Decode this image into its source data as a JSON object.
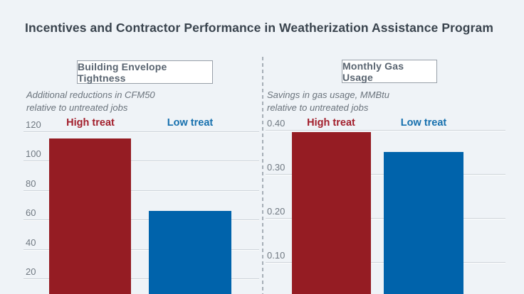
{
  "page": {
    "title": "Incentives and Contractor Performance in Weatherization Assistance Program"
  },
  "colors": {
    "background": "#eff3f7",
    "title_text": "#3a444e",
    "high_treat_bar": "#951c23",
    "low_treat_bar": "#0063ab",
    "high_treat_label": "#a21e2b",
    "low_treat_label": "#1670ae",
    "axis_text": "#6f7881",
    "subtitle_text": "#6a737c",
    "grid_line": "#cdd3d9",
    "divider": "#99a2ab",
    "box_border": "#979fa8",
    "box_text": "#596470",
    "box_bg": "#ffffff"
  },
  "chart_data": [
    {
      "type": "bar",
      "title": "Building Envelope Tightness",
      "subtitle_lines": [
        "Additional reductions in CFM50",
        "relative to untreated jobs"
      ],
      "categories": [
        "High treat",
        "Low treat"
      ],
      "values": [
        115,
        66
      ],
      "series_colors": [
        "#951c23",
        "#0063ab"
      ],
      "label_colors": [
        "#a21e2b",
        "#1670ae"
      ],
      "yticks": [
        {
          "value": 120,
          "label": "120"
        },
        {
          "value": 100,
          "label": "100"
        },
        {
          "value": 80,
          "label": "80"
        },
        {
          "value": 60,
          "label": "60"
        },
        {
          "value": 40,
          "label": "40"
        },
        {
          "value": 20,
          "label": "20"
        }
      ],
      "ylim": [
        0,
        120
      ],
      "grid": true,
      "legend": "none",
      "note": "bars cropped at bottom edge of image"
    },
    {
      "type": "bar",
      "title": "Monthly Gas Usage",
      "subtitle_lines": [
        "Savings in gas usage, MMBtu",
        "relative to untreated jobs"
      ],
      "categories": [
        "High treat",
        "Low treat"
      ],
      "values": [
        0.395,
        0.35
      ],
      "series_colors": [
        "#951c23",
        "#0063ab"
      ],
      "label_colors": [
        "#a21e2b",
        "#1670ae"
      ],
      "yticks": [
        {
          "value": 0.4,
          "label": "0.40"
        },
        {
          "value": 0.3,
          "label": "0.30"
        },
        {
          "value": 0.2,
          "label": "0.20"
        },
        {
          "value": 0.1,
          "label": "0.10"
        }
      ],
      "ylim": [
        0,
        0.4
      ],
      "grid": true,
      "legend": "none",
      "note": "bars cropped at bottom edge of image"
    }
  ]
}
